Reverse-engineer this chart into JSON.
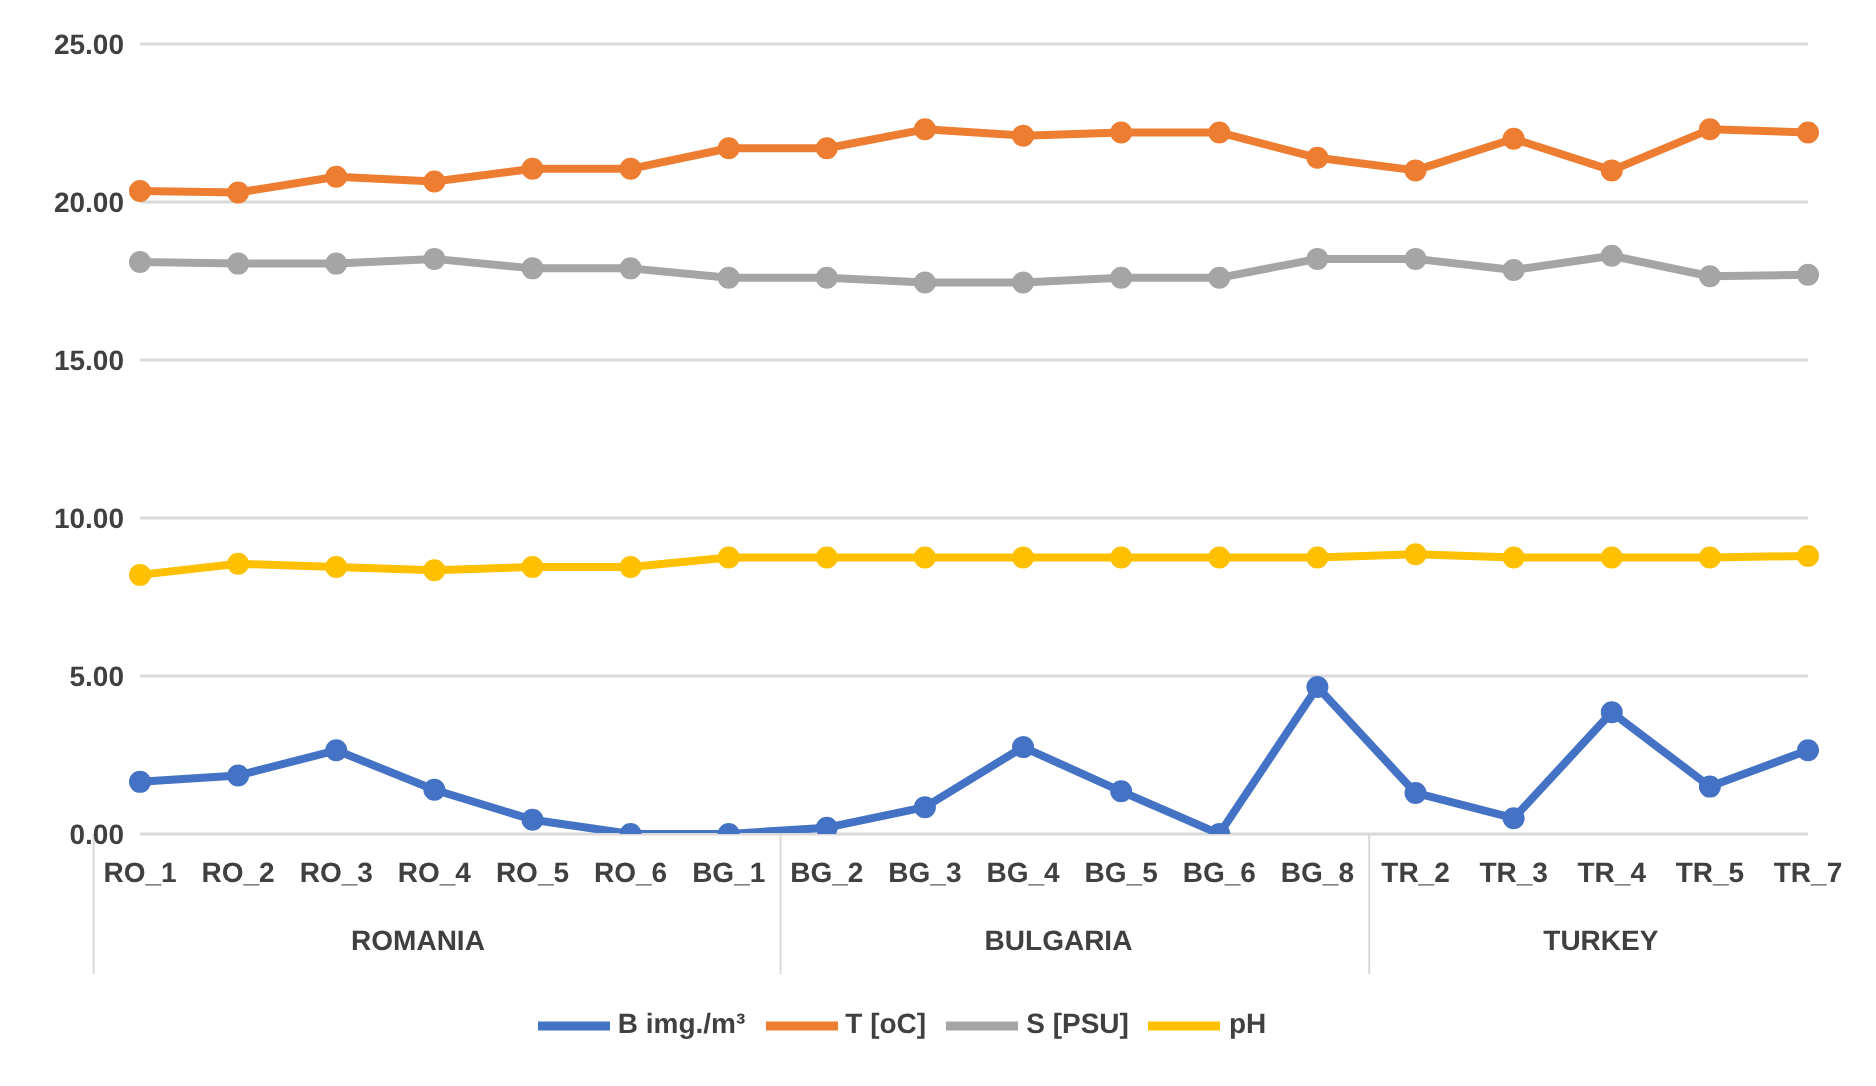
{
  "chart_data": {
    "type": "line",
    "categories": [
      "RO_1",
      "RO_2",
      "RO_3",
      "RO_4",
      "RO_5",
      "RO_6",
      "BG_1",
      "BG_2",
      "BG_3",
      "BG_4",
      "BG_5",
      "BG_6",
      "BG_8",
      "TR_2",
      "TR_3",
      "TR_4",
      "TR_5",
      "TR_7"
    ],
    "series": [
      {
        "name": "B img./m³",
        "color": "#4472c4",
        "values": [
          1.65,
          1.85,
          2.65,
          1.4,
          0.45,
          0.0,
          0.0,
          0.2,
          0.85,
          2.75,
          1.35,
          0.0,
          4.65,
          1.3,
          0.5,
          3.85,
          1.5,
          2.65
        ]
      },
      {
        "name": "T [oC]",
        "color": "#ed7d31",
        "values": [
          20.35,
          20.3,
          20.8,
          20.65,
          21.05,
          21.05,
          21.7,
          21.7,
          22.3,
          22.1,
          22.2,
          22.2,
          21.4,
          21.0,
          22.0,
          21.0,
          22.3,
          22.2
        ]
      },
      {
        "name": "S [PSU]",
        "color": "#a5a5a5",
        "values": [
          18.1,
          18.05,
          18.05,
          18.2,
          17.9,
          17.9,
          17.6,
          17.6,
          17.45,
          17.45,
          17.6,
          17.6,
          18.2,
          18.2,
          17.85,
          18.3,
          17.65,
          17.7
        ]
      },
      {
        "name": "pH",
        "color": "#ffc000",
        "values": [
          8.2,
          8.55,
          8.45,
          8.35,
          8.45,
          8.45,
          8.75,
          8.75,
          8.75,
          8.75,
          8.75,
          8.75,
          8.75,
          8.85,
          8.75,
          8.75,
          8.75,
          8.8
        ]
      }
    ],
    "annotations": [
      "ROMANIA",
      "BULGARIA",
      "TURKEY"
    ],
    "ylim": [
      0,
      25
    ],
    "yticks": [
      {
        "value": 0,
        "label": "0.00"
      },
      {
        "value": 5,
        "label": "5.00"
      },
      {
        "value": 10,
        "label": "10.00"
      },
      {
        "value": 15,
        "label": "15.00"
      },
      {
        "value": 20,
        "label": "20.00"
      },
      {
        "value": 25,
        "label": "25.00"
      }
    ],
    "grid": "y",
    "legend": "bottom",
    "marker": "circle",
    "line_style": "solid"
  }
}
